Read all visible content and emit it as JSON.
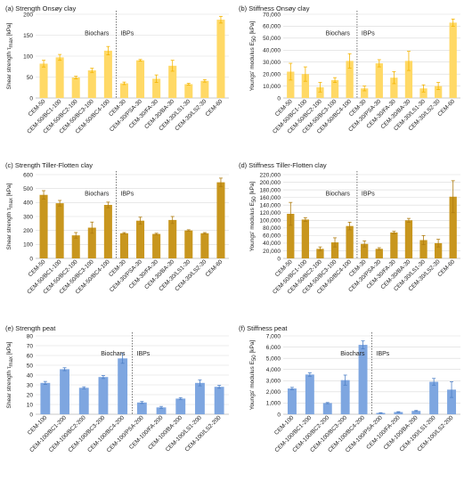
{
  "chart_data": [
    {
      "type": "bar",
      "title": "(a) Strength Onsøy clay",
      "ylabel": "Shear strength τ_max [kPa]",
      "ylim": [
        0,
        200
      ],
      "yticks": [
        0,
        50,
        100,
        150,
        200
      ],
      "ytick_labels": [
        "0",
        "50",
        "100",
        "150",
        "200"
      ],
      "grid": true,
      "bar_color": "#FFD966",
      "error_color": "#F4B400",
      "categories": [
        "CEM-50",
        "CEM-50/BC1-100",
        "CEM-50/BC2-100",
        "CEM-50/BC3-100",
        "CEM-50/BC4-100",
        "CEM-30",
        "CEM-30/PSA-30",
        "CEM-30/FA-30",
        "CEM-30/BA-30",
        "CEM-30/LS1-30",
        "CEM-30/LS2-30",
        "CEM-60"
      ],
      "values": [
        82,
        97,
        49,
        66,
        113,
        35,
        90,
        46,
        77,
        33,
        41,
        187
      ],
      "errors": [
        8,
        7,
        3,
        5,
        10,
        3,
        2,
        9,
        13,
        2,
        3,
        8
      ],
      "group_labels": [
        "Biochars",
        "IBPs"
      ],
      "divider_after_index": 4
    },
    {
      "type": "bar",
      "title": "(b) Stiffness Onsøy clay",
      "ylabel": "Youngs' modulus E_50 [kPa]",
      "ylim": [
        0,
        70000
      ],
      "yticks": [
        0,
        10000,
        20000,
        30000,
        40000,
        50000,
        60000,
        70000
      ],
      "ytick_labels": [
        "0",
        "10,000",
        "20,000",
        "30,000",
        "40,000",
        "50,000",
        "60,000",
        "70,000"
      ],
      "grid": true,
      "bar_color": "#FFD966",
      "error_color": "#F4B400",
      "categories": [
        "CEM-50",
        "CEM-50/BC1-100",
        "CEM-50/BC2-100",
        "CEM-50/BC3-100",
        "CEM-50/BC4-100",
        "CEM-30",
        "CEM-30/PSA-30",
        "CEM-30/FA-30",
        "CEM-30/BA-30",
        "CEM-30/LS1-30",
        "CEM-30/LS2-30",
        "CEM-60"
      ],
      "values": [
        22000,
        20000,
        9000,
        15000,
        31000,
        8000,
        29000,
        17000,
        31000,
        8000,
        10000,
        63000
      ],
      "errors": [
        7000,
        6000,
        4000,
        2000,
        6000,
        2000,
        3000,
        5000,
        8000,
        3000,
        3000,
        3000
      ],
      "group_labels": [
        "Biochars",
        "IBPs"
      ],
      "divider_after_index": 4
    },
    {
      "type": "bar",
      "title": "(c) Strength Tiller-Flotten clay",
      "ylabel": "Shear strength τ_max [kPa]",
      "ylim": [
        0,
        600
      ],
      "yticks": [
        0,
        100,
        200,
        300,
        400,
        500,
        600
      ],
      "ytick_labels": [
        "0",
        "100",
        "200",
        "300",
        "400",
        "500",
        "600"
      ],
      "grid": true,
      "bar_color": "#C8961E",
      "error_color": "#B07D10",
      "categories": [
        "CEM-50",
        "CEM-50/BC1-100",
        "CEM-50/BC2-100",
        "CEM-50/BC3-100",
        "CEM-50/BC4-100",
        "CEM-30",
        "CEM-30/PSA-30",
        "CEM-30/FA-30",
        "CEM-30/BA-30",
        "CEM-30/LS1-30",
        "CEM-30/LS2-30",
        "CEM-60"
      ],
      "values": [
        455,
        395,
        165,
        220,
        383,
        180,
        270,
        175,
        275,
        200,
        180,
        545
      ],
      "errors": [
        30,
        20,
        20,
        40,
        20,
        5,
        25,
        5,
        25,
        5,
        5,
        30
      ],
      "group_labels": [
        "Biochars",
        "IBPs"
      ],
      "divider_after_index": 4
    },
    {
      "type": "bar",
      "title": "(d) Stiffness Tiller-Flotten clay",
      "ylabel": "Youngs' modulus E_50 [kPa]",
      "ylim": [
        0,
        220000
      ],
      "yticks": [
        0,
        20000,
        40000,
        60000,
        80000,
        100000,
        120000,
        140000,
        160000,
        180000,
        200000,
        220000
      ],
      "ytick_labels": [
        "0",
        "20,000",
        "40,000",
        "60,000",
        "80,000",
        "100,000",
        "120,000",
        "140,000",
        "160,000",
        "180,000",
        "200,000",
        "220,000"
      ],
      "grid": true,
      "bar_color": "#C8961E",
      "error_color": "#B07D10",
      "categories": [
        "CEM-50",
        "CEM-50/BC1-100",
        "CEM-50/BC2-100",
        "CEM-50/BC3-100",
        "CEM-50/BC4-100",
        "CEM-30",
        "CEM-30/PSA-30",
        "CEM-30/FA-30",
        "CEM-30/BA-30",
        "CEM-30/LS1-30",
        "CEM-30/LS2-30",
        "CEM-60"
      ],
      "values": [
        117000,
        102000,
        25000,
        42000,
        85000,
        38000,
        25000,
        68000,
        100000,
        48000,
        40000,
        162000
      ],
      "errors": [
        30000,
        5000,
        5000,
        12000,
        10000,
        8000,
        3000,
        3000,
        5000,
        12000,
        10000,
        42000
      ],
      "group_labels": [
        "Biochars",
        "IBPs"
      ],
      "divider_after_index": 4
    },
    {
      "type": "bar",
      "title": "(e) Strength peat",
      "ylabel": "Shear strength τ_max [kPa]",
      "ylim": [
        0,
        80
      ],
      "yticks": [
        0,
        10,
        20,
        30,
        40,
        50,
        60,
        70,
        80
      ],
      "ytick_labels": [
        "0",
        "10",
        "20",
        "30",
        "40",
        "50",
        "60",
        "70",
        "80"
      ],
      "grid": true,
      "bar_color": "#7EA6E0",
      "error_color": "#4F81C7",
      "categories": [
        "CEM-100",
        "CEM-100/BC1-200",
        "CEM-100/BC2-200",
        "CEM-100/BC3-200",
        "CEM-100/BC4-200",
        "CEM-100/PSA-200",
        "CEM-100/FA-200",
        "CEM-100/BA-200",
        "CEM-100/LS1-200",
        "CEM-100/LS2-200"
      ],
      "values": [
        32,
        46,
        27,
        38,
        57,
        12,
        7,
        16,
        32,
        28
      ],
      "errors": [
        1.5,
        1.5,
        1,
        1.5,
        5,
        1,
        1,
        1,
        3,
        1.5
      ],
      "group_labels": [
        "Biochars",
        "IBPs"
      ],
      "divider_after_index": 4
    },
    {
      "type": "bar",
      "title": "(f) Stiffness peat",
      "ylabel": "Youngs' modulus E_50 [kPa]",
      "ylim": [
        0,
        7000
      ],
      "yticks": [
        0,
        1000,
        2000,
        3000,
        4000,
        5000,
        6000,
        7000
      ],
      "ytick_labels": [
        "0",
        "1,000",
        "2,000",
        "3,000",
        "4,000",
        "5,000",
        "6,000",
        "7,000"
      ],
      "grid": true,
      "bar_color": "#7EA6E0",
      "error_color": "#4F81C7",
      "categories": [
        "CEM-100",
        "CEM-100/BC1-200",
        "CEM-100/BC2-200",
        "CEM-100/BC3-200",
        "CEM-100/BC4-200",
        "CEM-100/PSA-200",
        "CEM-100/FA-200",
        "CEM-100/BA-200",
        "CEM-100/LS1-200",
        "CEM-100/LS2-200"
      ],
      "values": [
        2300,
        3550,
        1000,
        3050,
        6200,
        120,
        200,
        300,
        2900,
        2200
      ],
      "errors": [
        100,
        150,
        50,
        450,
        350,
        20,
        30,
        40,
        300,
        700
      ],
      "group_labels": [
        "Biochars",
        "IBPs"
      ],
      "divider_after_index": 4
    }
  ]
}
